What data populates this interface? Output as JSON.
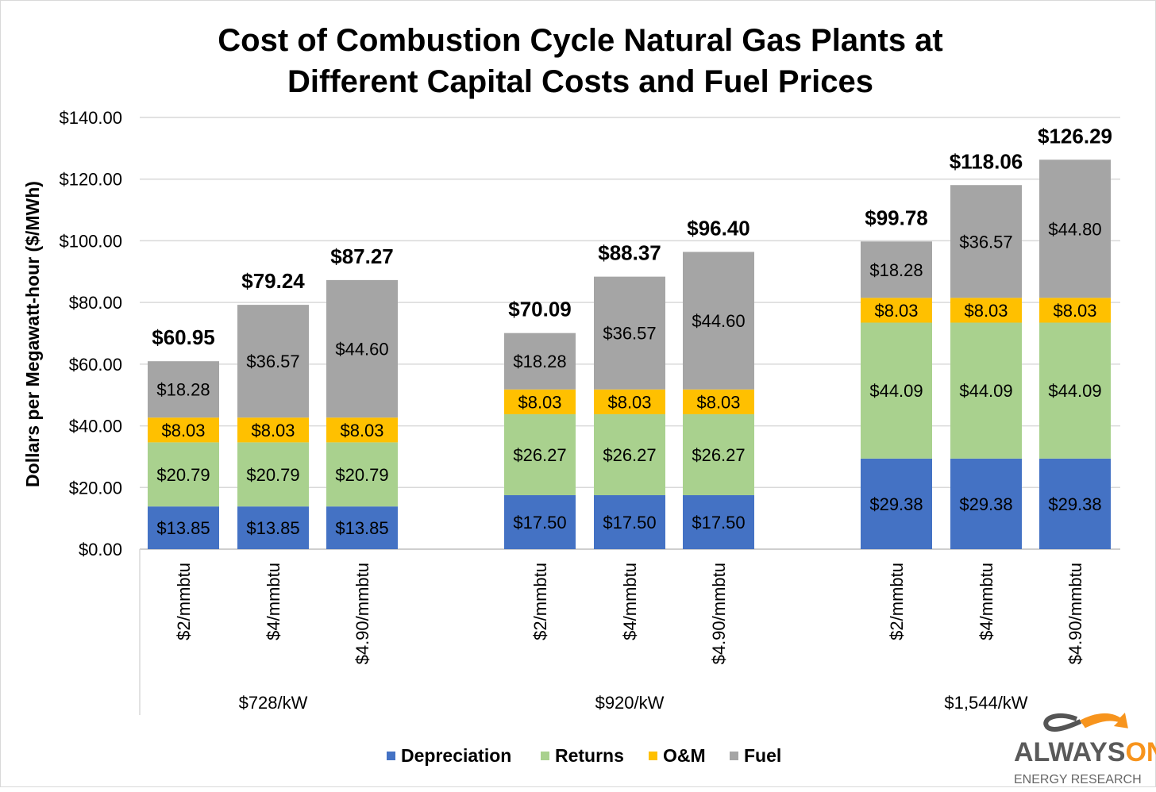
{
  "chart_data": {
    "type": "bar",
    "stacked": true,
    "title": [
      "Cost of Combustion Cycle Natural Gas Plants at",
      "Different Capital Costs and Fuel Prices"
    ],
    "ylabel": "Dollars per Megawatt-hour ($/MWh)",
    "ylim": [
      0,
      140
    ],
    "yticks": [
      0,
      20,
      40,
      60,
      80,
      100,
      120,
      140
    ],
    "ytick_labels": [
      "$0.00",
      "$20.00",
      "$40.00",
      "$60.00",
      "$80.00",
      "$100.00",
      "$120.00",
      "$140.00"
    ],
    "grid": true,
    "groups": [
      {
        "label": "$728/kW",
        "categories": [
          "$2/mmbtu",
          "$4/mmbtu",
          "$4.90/mmbtu"
        ]
      },
      {
        "label": "$920/kW",
        "categories": [
          "$2/mmbtu",
          "$4/mmbtu",
          "$4.90/mmbtu"
        ]
      },
      {
        "label": "$1,544/kW",
        "categories": [
          "$2/mmbtu",
          "$4/mmbtu",
          "$4.90/mmbtu"
        ]
      }
    ],
    "series": [
      {
        "name": "Depreciation",
        "color": "#4472C4",
        "values": [
          13.85,
          13.85,
          13.85,
          17.5,
          17.5,
          17.5,
          29.38,
          29.38,
          29.38
        ]
      },
      {
        "name": "Returns",
        "color": "#A9D18E",
        "values": [
          20.79,
          20.79,
          20.79,
          26.27,
          26.27,
          26.27,
          44.09,
          44.09,
          44.09
        ]
      },
      {
        "name": "O&M",
        "color": "#FFC000",
        "values": [
          8.03,
          8.03,
          8.03,
          8.03,
          8.03,
          8.03,
          8.03,
          8.03,
          8.03
        ]
      },
      {
        "name": "Fuel",
        "color": "#A5A5A5",
        "values": [
          18.28,
          36.57,
          44.6,
          18.28,
          36.57,
          44.6,
          18.28,
          36.57,
          44.8
        ]
      }
    ],
    "totals": [
      60.95,
      79.24,
      87.27,
      70.09,
      88.37,
      96.4,
      99.78,
      118.06,
      126.29
    ],
    "legend_position": "bottom"
  },
  "logo": {
    "brand_a": "ALWAYS",
    "brand_b": "ON",
    "sub": "ENERGY RESEARCH"
  }
}
